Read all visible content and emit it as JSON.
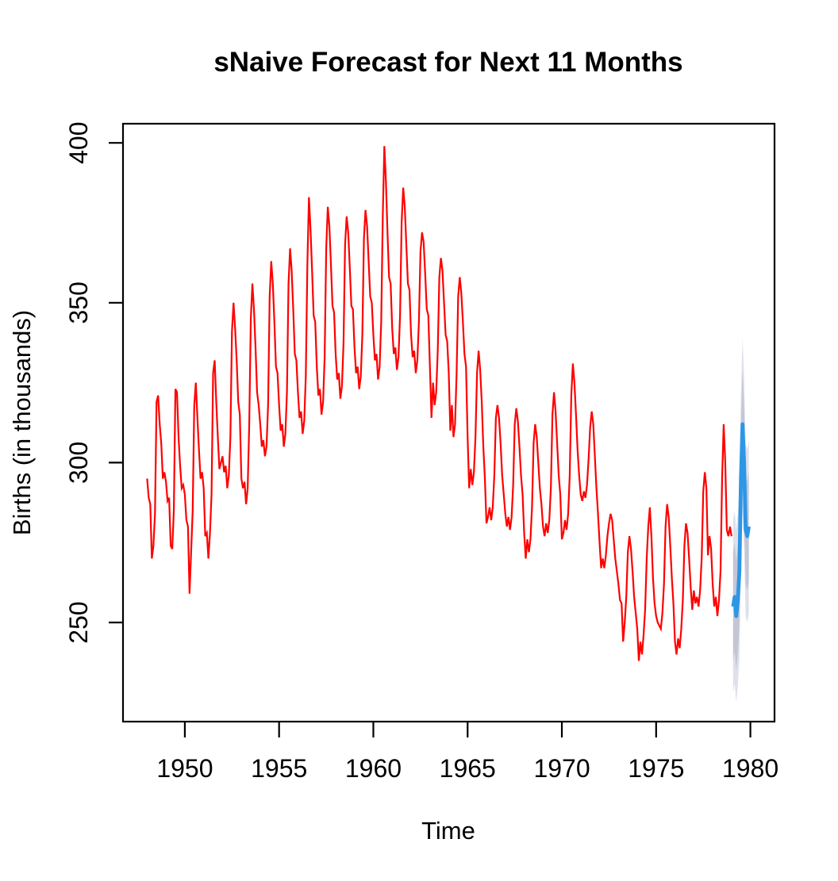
{
  "title": "sNaive Forecast for Next 11 Months",
  "chart_data": {
    "type": "line",
    "title": "sNaive Forecast for Next 11 Months",
    "xlabel": "Time",
    "ylabel": "Births (in thousands)",
    "grid": false,
    "legend": "none",
    "xlim": [
      1946.72,
      1981.28
    ],
    "ylim": [
      219,
      406
    ],
    "x_ticks": [
      1950,
      1955,
      1960,
      1965,
      1970,
      1975,
      1980
    ],
    "x_tick_labels": [
      "1950",
      "1955",
      "1960",
      "1965",
      "1970",
      "1975",
      "1980"
    ],
    "y_ticks": [
      250,
      300,
      350,
      400
    ],
    "y_tick_labels": [
      "250",
      "300",
      "350",
      "400"
    ],
    "series": [
      {
        "name": "observed-births",
        "color": "#FF0000",
        "start_year": 1948,
        "start_month": 1,
        "frequency": 12,
        "values": [
          295,
          289,
          287,
          270,
          274,
          284,
          319,
          321,
          312,
          306,
          295,
          297,
          294,
          288,
          289,
          274,
          273,
          285,
          323,
          322,
          308,
          299,
          292,
          293,
          290,
          282,
          280,
          259,
          272,
          285,
          318,
          325,
          314,
          304,
          295,
          297,
          292,
          277,
          278,
          270,
          278,
          290,
          328,
          332,
          319,
          308,
          298,
          300,
          302,
          297,
          299,
          292,
          296,
          308,
          341,
          350,
          342,
          332,
          319,
          315,
          295,
          292,
          294,
          287,
          292,
          312,
          345,
          356,
          348,
          336,
          322,
          318,
          312,
          305,
          307,
          302,
          305,
          318,
          352,
          363,
          356,
          344,
          330,
          328,
          318,
          310,
          312,
          305,
          309,
          322,
          356,
          367,
          360,
          348,
          334,
          332,
          322,
          314,
          316,
          309,
          313,
          327,
          362,
          383,
          373,
          360,
          346,
          344,
          330,
          321,
          323,
          315,
          319,
          333,
          367,
          380,
          374,
          362,
          349,
          347,
          334,
          326,
          328,
          320,
          324,
          337,
          368,
          377,
          372,
          361,
          349,
          348,
          336,
          328,
          330,
          323,
          327,
          340,
          370,
          379,
          374,
          363,
          352,
          350,
          340,
          332,
          334,
          326,
          330,
          344,
          377,
          399,
          388,
          372,
          358,
          356,
          342,
          334,
          336,
          329,
          333,
          346,
          375,
          386,
          380,
          368,
          356,
          354,
          340,
          333,
          335,
          328,
          332,
          344,
          366,
          372,
          369,
          359,
          348,
          346,
          330,
          314,
          325,
          318,
          322,
          335,
          358,
          364,
          360,
          350,
          340,
          338,
          328,
          310,
          318,
          308,
          312,
          328,
          352,
          358,
          353,
          344,
          334,
          330,
          308,
          292,
          298,
          293,
          297,
          308,
          328,
          335,
          329,
          319,
          305,
          295,
          281,
          283,
          286,
          282,
          286,
          296,
          314,
          318,
          314,
          306,
          296,
          290,
          284,
          280,
          283,
          279,
          283,
          293,
          312,
          317,
          313,
          305,
          296,
          290,
          278,
          270,
          276,
          272,
          276,
          286,
          306,
          312,
          308,
          300,
          292,
          287,
          280,
          277,
          281,
          278,
          282,
          292,
          315,
          322,
          316,
          306,
          296,
          290,
          276,
          278,
          282,
          279,
          284,
          296,
          321,
          331,
          325,
          315,
          304,
          296,
          290,
          288,
          291,
          289,
          293,
          301,
          311,
          316,
          312,
          302,
          292,
          284,
          275,
          267,
          270,
          267,
          271,
          277,
          281,
          284,
          282,
          276,
          270,
          266,
          262,
          257,
          256,
          244,
          250,
          258,
          272,
          277,
          273,
          266,
          258,
          253,
          248,
          238,
          244,
          240,
          246,
          254,
          270,
          280,
          286,
          277,
          264,
          256,
          252,
          250,
          249,
          248,
          253,
          262,
          280,
          287,
          283,
          274,
          264,
          256,
          244,
          240,
          245,
          242,
          248,
          257,
          274,
          281,
          278,
          270,
          261,
          254,
          260,
          256,
          258,
          255,
          260,
          270,
          291,
          297,
          292,
          271,
          277,
          273,
          262,
          255,
          258,
          252,
          257,
          266,
          295,
          312,
          300,
          279,
          277,
          280,
          277
        ]
      },
      {
        "name": "snaive-forecast-mean",
        "color": "#2D96E6",
        "start_year": 1979,
        "start_month": 2,
        "frequency": 12,
        "values": [
          255,
          258,
          252,
          257,
          266,
          295,
          312,
          300,
          279,
          277,
          280
        ]
      }
    ],
    "intervals": {
      "level80": {
        "color": "#C4C6D6",
        "lower": [
          238,
          241,
          235,
          240,
          249,
          278,
          295,
          283,
          262,
          260,
          263
        ],
        "upper": [
          272,
          275,
          269,
          274,
          283,
          312,
          329,
          317,
          296,
          294,
          297
        ]
      },
      "level95": {
        "color": "#DEE0EB",
        "lower": [
          228,
          231,
          225,
          230,
          239,
          268,
          285,
          273,
          252,
          250,
          253
        ],
        "upper": [
          282,
          285,
          279,
          284,
          293,
          322,
          339,
          327,
          306,
          304,
          307
        ]
      }
    }
  },
  "theme": {
    "background": "#FFFFFF",
    "box_color": "#000000",
    "text_color": "#000000"
  }
}
